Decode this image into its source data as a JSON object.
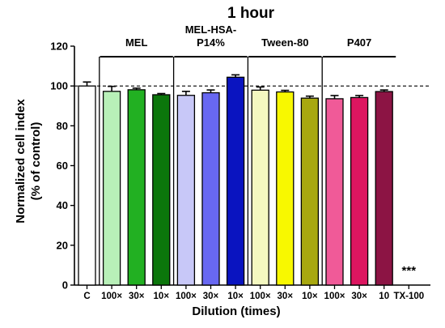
{
  "chart_data": {
    "type": "bar",
    "title": "1 hour",
    "xlabel": "Dilution (times)",
    "ylabel_lines": [
      "Normalized cell index",
      "(% of control)"
    ],
    "ylim": [
      0,
      120
    ],
    "yticks": [
      0,
      20,
      40,
      60,
      80,
      100,
      120
    ],
    "reference_line": 100,
    "categories": [
      "C",
      "100×",
      "30×",
      "10×",
      "100×",
      "30×",
      "10×",
      "100×",
      "30×",
      "10×",
      "100×",
      "30×",
      "10",
      "TX-100"
    ],
    "values": [
      100,
      97.3,
      98.1,
      95.6,
      95.3,
      96.6,
      104.4,
      97.9,
      97.0,
      93.9,
      93.6,
      94.2,
      97.2,
      0
    ],
    "errors": [
      2.0,
      2.5,
      0.8,
      0.6,
      2.0,
      1.4,
      1.2,
      1.6,
      0.8,
      1.0,
      1.6,
      1.0,
      0.8,
      0
    ],
    "colors": [
      "#ffffff",
      "#b8f0b8",
      "#22b022",
      "#0b760b",
      "#c8c8f8",
      "#6868f2",
      "#0a14c0",
      "#f4f8c0",
      "#f8f800",
      "#a8a810",
      "#f05a98",
      "#dc1660",
      "#8c1444",
      "#ffffff"
    ],
    "groups": [
      {
        "label_lines": [
          "MEL"
        ],
        "from": 1,
        "to": 3
      },
      {
        "label_lines": [
          "MEL-HSA-",
          "P14%"
        ],
        "from": 4,
        "to": 6
      },
      {
        "label_lines": [
          "Tween-80"
        ],
        "from": 7,
        "to": 9
      },
      {
        "label_lines": [
          "P407"
        ],
        "from": 10,
        "to": 12
      }
    ],
    "annotations": [
      {
        "text": "***",
        "index": 13,
        "y": 0
      }
    ]
  }
}
